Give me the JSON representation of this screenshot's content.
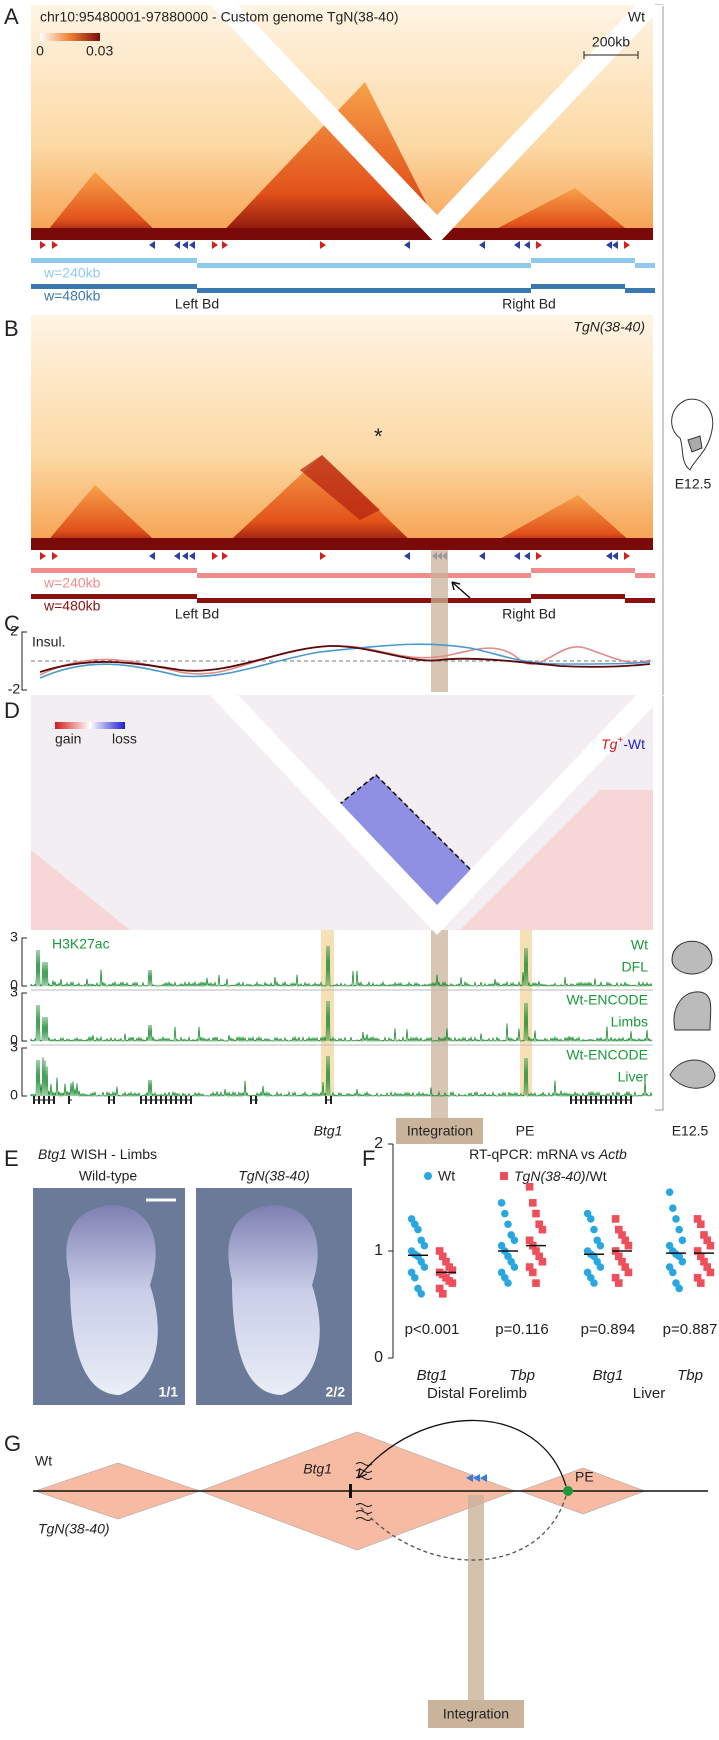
{
  "panel_labels": [
    "A",
    "B",
    "C",
    "D",
    "E",
    "F",
    "G"
  ],
  "A": {
    "title": "chr10:95480001-97880000 - Custom genome TgN(38-40)",
    "condition": "Wt",
    "colorbar_min": 0,
    "colorbar_max": 0.03,
    "scale_bar": "200kb",
    "window_small": "w=240kb",
    "window_large": "w=480kb",
    "left_boundary": "Left Bd",
    "right_boundary": "Right Bd"
  },
  "B": {
    "condition": "TgN(38-40)",
    "asterisk": "*",
    "stage": "E12.5",
    "window_small": "w=240kb",
    "window_large": "w=480kb",
    "left_boundary": "Left Bd",
    "right_boundary": "Right Bd"
  },
  "C": {
    "track": "Insul.",
    "yticks": [
      2,
      -2
    ]
  },
  "D": {
    "legend_gain": "gain",
    "legend_loss": "loss",
    "comparison_main": "Tg",
    "comparison_sup": "+",
    "comparison_rest": "-Wt",
    "mark": "H3K27ac",
    "tracks": [
      {
        "ymax": 3,
        "ymin": 0,
        "label1": "Wt",
        "label2": "DFL"
      },
      {
        "ymax": 3,
        "ymin": 0,
        "label1": "Wt-ENCODE",
        "label2": "Limbs"
      },
      {
        "ymax": 3,
        "ymin": 0,
        "label1": "Wt-ENCODE",
        "label2": "Liver"
      }
    ],
    "gene": "Btg1",
    "integration": "Integration",
    "enhancer": "PE",
    "stage": "E12.5"
  },
  "E": {
    "title_gene": "Btg1",
    "title_rest": " WISH - Limbs",
    "images": [
      {
        "label": "Wild-type",
        "count": "1/1"
      },
      {
        "label": "TgN(38-40)",
        "count": "2/2"
      }
    ]
  },
  "F": {
    "title_main": "RT-qPCR: mRNA vs ",
    "title_gene": "Actb",
    "ylim": [
      0,
      2
    ],
    "yticks": [
      0,
      1,
      2
    ],
    "legend": [
      {
        "name": "Wt",
        "color": "#2aa7e1"
      },
      {
        "name_italic": "TgN(38-40)",
        "name_rest": "/Wt",
        "color": "#ef4f5b"
      }
    ],
    "groups": [
      {
        "gene": "Btg1",
        "p": "p<0.001",
        "wt": [
          1.3,
          1.25,
          1.2,
          1.1,
          1.05,
          1.0,
          0.97,
          0.95,
          0.9,
          0.85,
          0.8,
          0.75,
          0.65,
          0.6
        ],
        "tg": [
          1.0,
          0.95,
          0.9,
          0.85,
          0.82,
          0.8,
          0.78,
          0.75,
          0.72,
          0.7,
          0.65,
          0.6
        ],
        "wt_median": 0.96,
        "tg_median": 0.8
      },
      {
        "gene": "Tbp",
        "p": "p=0.116",
        "wt": [
          1.45,
          1.35,
          1.25,
          1.15,
          1.1,
          1.05,
          1.0,
          0.95,
          0.9,
          0.85,
          0.8,
          0.75,
          0.7
        ],
        "tg": [
          1.6,
          1.45,
          1.35,
          1.25,
          1.2,
          1.1,
          1.05,
          1.0,
          0.95,
          0.9,
          0.85,
          0.8,
          0.7
        ],
        "wt_median": 1.0,
        "tg_median": 1.05
      },
      {
        "gene": "Btg1",
        "p": "p=0.894",
        "wt": [
          1.35,
          1.3,
          1.2,
          1.1,
          1.05,
          1.0,
          0.97,
          0.95,
          0.9,
          0.85,
          0.8,
          0.75,
          0.7
        ],
        "tg": [
          1.3,
          1.2,
          1.15,
          1.1,
          1.05,
          1.0,
          0.95,
          0.9,
          0.85,
          0.8,
          0.75,
          0.7
        ],
        "wt_median": 0.97,
        "tg_median": 1.0
      },
      {
        "gene": "Tbp",
        "p": "p=0.887",
        "wt": [
          1.55,
          1.4,
          1.3,
          1.2,
          1.1,
          1.05,
          1.0,
          0.97,
          0.95,
          0.9,
          0.85,
          0.8,
          0.7,
          0.65
        ],
        "tg": [
          1.3,
          1.25,
          1.15,
          1.1,
          1.05,
          1.0,
          0.95,
          0.9,
          0.85,
          0.8,
          0.75,
          0.7
        ],
        "wt_median": 0.98,
        "tg_median": 0.98
      }
    ],
    "tissues": [
      "Distal Forelimb",
      "Liver"
    ]
  },
  "G": {
    "wt": "Wt",
    "tg": "TgN(38-40)",
    "gene": "Btg1",
    "enhancer": "PE",
    "integration": "Integration"
  }
}
